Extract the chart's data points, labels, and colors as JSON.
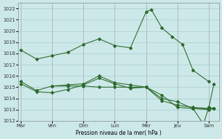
{
  "bg_color": "#cce8e8",
  "grid_color": "#aacccc",
  "line_color": "#2d6a2d",
  "marker_color": "#2d6a2d",
  "title": "Pression niveau de la mer( hPa )",
  "ylim": [
    1012,
    1022.5
  ],
  "yticks": [
    1012,
    1013,
    1014,
    1015,
    1016,
    1017,
    1018,
    1019,
    1020,
    1021,
    1022
  ],
  "xtick_labels": [
    "Mar",
    "Ven",
    "Dim",
    "Lun",
    "Mer",
    "Jeu",
    "Sam"
  ],
  "xtick_positions": [
    0,
    6,
    12,
    18,
    24,
    30,
    36
  ],
  "xlim": [
    -0.5,
    38
  ],
  "series1_x": [
    0,
    3,
    6,
    9,
    12,
    15,
    18,
    21,
    24,
    25,
    27,
    29,
    31,
    33,
    36
  ],
  "series1_y": [
    1018.3,
    1017.5,
    1017.8,
    1018.1,
    1018.8,
    1019.3,
    1018.7,
    1018.5,
    1021.7,
    1021.9,
    1020.3,
    1019.5,
    1018.8,
    1016.5,
    1015.5
  ],
  "series2_x": [
    0,
    3,
    6,
    9,
    12,
    15,
    18,
    21,
    24,
    27,
    30,
    33,
    36,
    37
  ],
  "series2_y": [
    1015.5,
    1014.7,
    1015.1,
    1015.2,
    1015.3,
    1016.0,
    1015.4,
    1015.2,
    1015.0,
    1013.8,
    1013.4,
    1013.2,
    1013.1,
    1013.1
  ],
  "series3_x": [
    0,
    3,
    6,
    9,
    12,
    15,
    18,
    21,
    24,
    27,
    30,
    33,
    36,
    37
  ],
  "series3_y": [
    1015.3,
    1014.6,
    1014.5,
    1014.8,
    1015.2,
    1015.8,
    1015.3,
    1014.9,
    1015.0,
    1014.0,
    1013.7,
    1013.1,
    1013.0,
    1013.1
  ],
  "series4_x": [
    6,
    9,
    12,
    15,
    18,
    21,
    24,
    27,
    30,
    33,
    36,
    37
  ],
  "series4_y": [
    1015.1,
    1015.1,
    1015.1,
    1015.0,
    1015.0,
    1015.0,
    1015.0,
    1014.3,
    1013.2,
    1013.1,
    1013.1,
    1015.3
  ],
  "series5_x": [
    33,
    35,
    36,
    37
  ],
  "series5_y": [
    1013.1,
    1011.7,
    1013.2,
    1013.1
  ]
}
